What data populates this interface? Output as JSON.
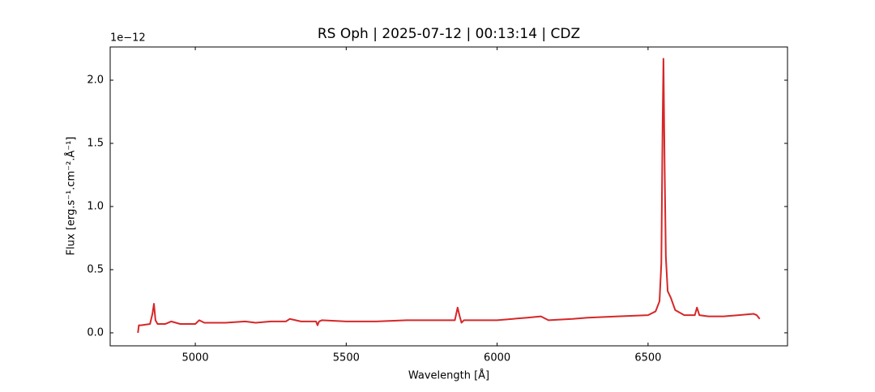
{
  "chart_data": {
    "type": "line",
    "title": "RS Oph | 2025-07-12 | 00:13:14 | CDZ",
    "x_label": "Wavelength [Å]",
    "y_label": "Flux [erg.s⁻¹.cm⁻².Å⁻¹]",
    "y_offset_label": "1e−12",
    "xlim": [
      4718,
      6962
    ],
    "ylim": [
      -0.103,
      2.263
    ],
    "xticks": [
      5000,
      5500,
      6000,
      6500
    ],
    "yticks": [
      {
        "value": 0,
        "label": "0.0"
      },
      0.5,
      {
        "value": 1,
        "label": "1.0"
      },
      1.5,
      {
        "value": 2,
        "label": "2.0"
      }
    ],
    "grid": false,
    "series": [
      {
        "color": "#d62728",
        "x": [
          4810,
          4813,
          4820,
          4850,
          4858,
          4863,
          4868,
          4875,
          4900,
          4920,
          4950,
          5000,
          5013,
          5030,
          5100,
          5165,
          5200,
          5250,
          5300,
          5313,
          5350,
          5400,
          5405,
          5410,
          5420,
          5500,
          5600,
          5700,
          5760,
          5800,
          5860,
          5869,
          5876,
          5882,
          5890,
          5920,
          6000,
          6100,
          6145,
          6170,
          6250,
          6300,
          6400,
          6500,
          6525,
          6538,
          6544,
          6548,
          6551,
          6555,
          6559,
          6565,
          6575,
          6590,
          6620,
          6655,
          6662,
          6670,
          6700,
          6750,
          6800,
          6850,
          6860,
          6870
        ],
        "values": [
          0.0,
          0.06,
          0.06,
          0.07,
          0.15,
          0.23,
          0.1,
          0.07,
          0.07,
          0.09,
          0.07,
          0.07,
          0.1,
          0.08,
          0.08,
          0.09,
          0.08,
          0.09,
          0.09,
          0.11,
          0.09,
          0.09,
          0.06,
          0.09,
          0.1,
          0.09,
          0.09,
          0.1,
          0.1,
          0.1,
          0.1,
          0.2,
          0.13,
          0.08,
          0.1,
          0.1,
          0.1,
          0.12,
          0.13,
          0.1,
          0.11,
          0.12,
          0.13,
          0.14,
          0.17,
          0.25,
          0.55,
          1.6,
          2.17,
          1.3,
          0.6,
          0.33,
          0.28,
          0.18,
          0.14,
          0.14,
          0.2,
          0.14,
          0.13,
          0.13,
          0.14,
          0.15,
          0.14,
          0.11
        ]
      }
    ]
  }
}
